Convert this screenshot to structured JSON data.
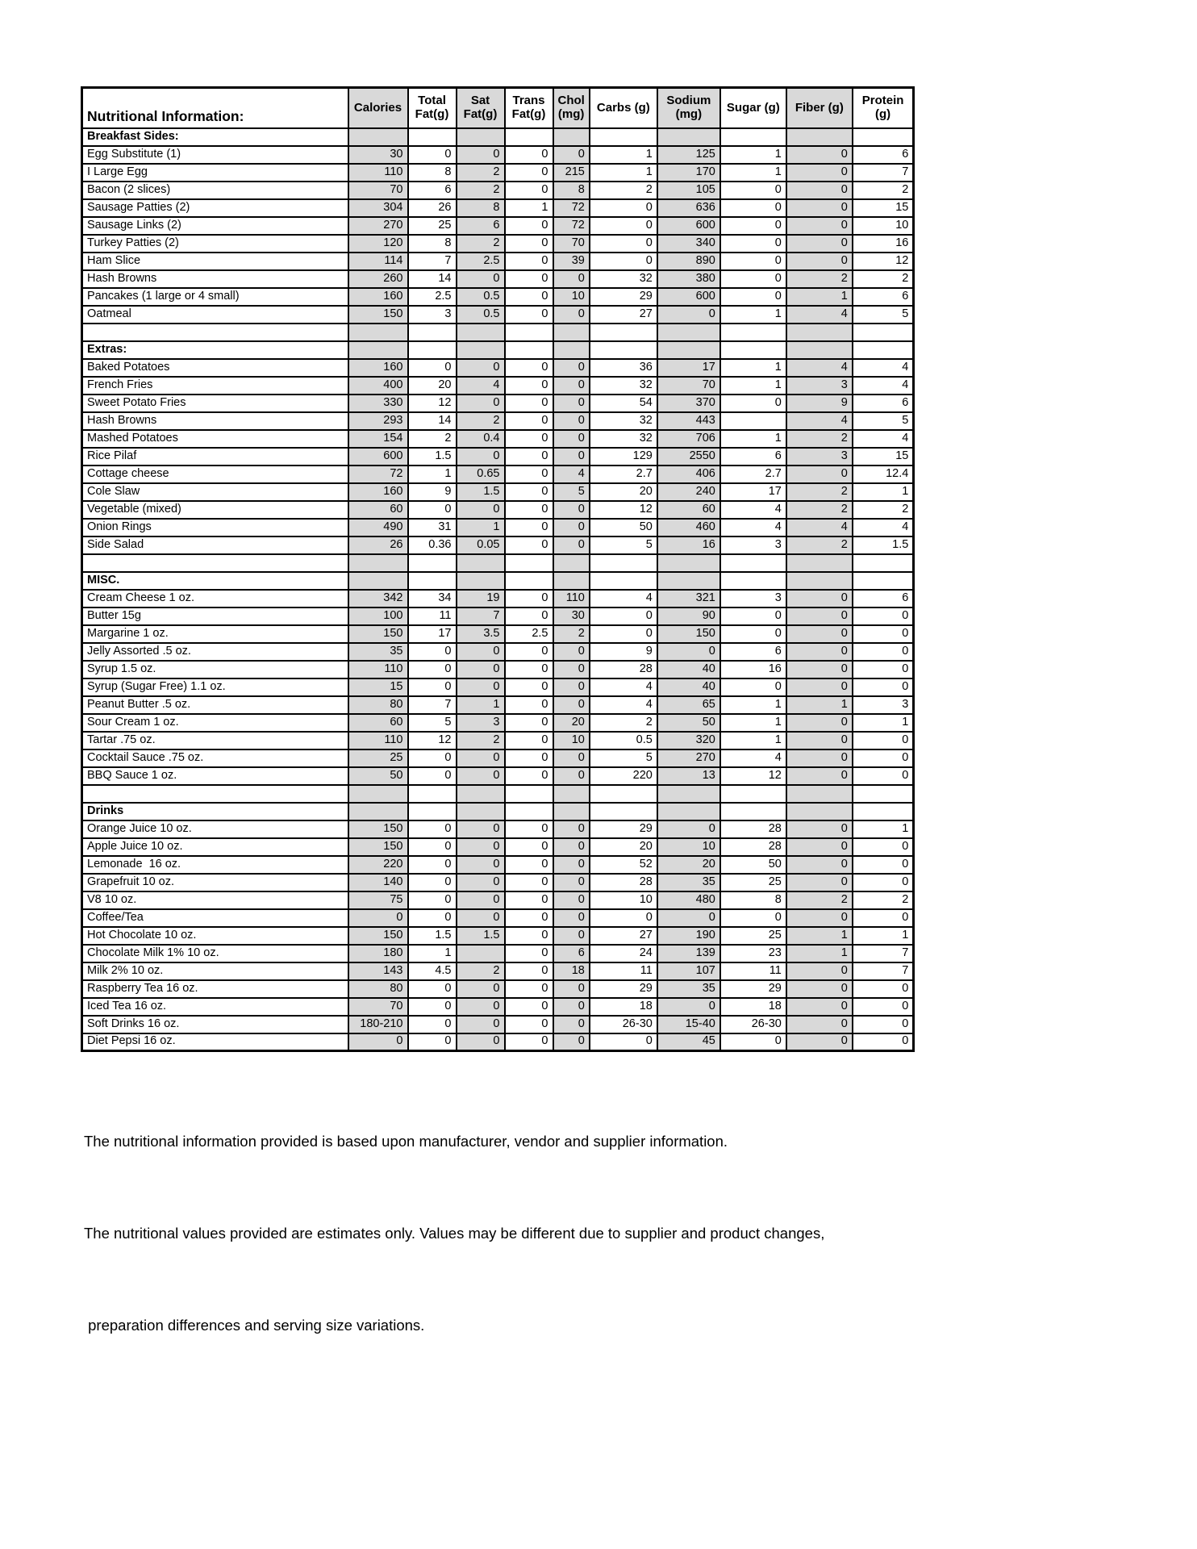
{
  "colors": {
    "cell_shade": "#d9d9d9",
    "border": "#000000",
    "text": "#000000",
    "background": "#ffffff"
  },
  "table": {
    "title": "Nutritional Information:",
    "columns": [
      {
        "key": "label",
        "label": "Nutritional Information:",
        "shaded": false
      },
      {
        "key": "calories",
        "label": "Calories",
        "shaded": true
      },
      {
        "key": "total-fat",
        "label": "Total\nFat(g)",
        "shaded": false
      },
      {
        "key": "sat-fat",
        "label": "Sat\nFat(g)",
        "shaded": true
      },
      {
        "key": "trans-fat",
        "label": "Trans\nFat(g)",
        "shaded": false
      },
      {
        "key": "chol",
        "label": "Chol\n(mg)",
        "shaded": true
      },
      {
        "key": "carbs",
        "label": "Carbs (g)",
        "shaded": false
      },
      {
        "key": "sodium",
        "label": "Sodium\n(mg)",
        "shaded": true
      },
      {
        "key": "sugar",
        "label": "Sugar (g)",
        "shaded": false
      },
      {
        "key": "fiber",
        "label": "Fiber (g)",
        "shaded": true
      },
      {
        "key": "protein",
        "label": "Protein\n(g)",
        "shaded": false
      }
    ],
    "rows": [
      {
        "t": "section",
        "label": "Breakfast Sides:"
      },
      {
        "t": "item",
        "label": "Egg Substitute (1)",
        "v": [
          "30",
          "0",
          "0",
          "0",
          "0",
          "1",
          "125",
          "1",
          "0",
          "6"
        ]
      },
      {
        "t": "item",
        "label": "I Large Egg",
        "v": [
          "110",
          "8",
          "2",
          "0",
          "215",
          "1",
          "170",
          "1",
          "0",
          "7"
        ]
      },
      {
        "t": "item",
        "label": "Bacon (2 slices)",
        "v": [
          "70",
          "6",
          "2",
          "0",
          "8",
          "2",
          "105",
          "0",
          "0",
          "2"
        ]
      },
      {
        "t": "item",
        "label": "Sausage Patties (2)",
        "v": [
          "304",
          "26",
          "8",
          "1",
          "72",
          "0",
          "636",
          "0",
          "0",
          "15"
        ]
      },
      {
        "t": "item",
        "label": "Sausage Links (2)",
        "v": [
          "270",
          "25",
          "6",
          "0",
          "72",
          "0",
          "600",
          "0",
          "0",
          "10"
        ]
      },
      {
        "t": "item",
        "label": "Turkey Patties (2)",
        "v": [
          "120",
          "8",
          "2",
          "0",
          "70",
          "0",
          "340",
          "0",
          "0",
          "16"
        ]
      },
      {
        "t": "item",
        "label": "Ham Slice",
        "v": [
          "114",
          "7",
          "2.5",
          "0",
          "39",
          "0",
          "890",
          "0",
          "0",
          "12"
        ]
      },
      {
        "t": "item",
        "label": "Hash Browns",
        "v": [
          "260",
          "14",
          "0",
          "0",
          "0",
          "32",
          "380",
          "0",
          "2",
          "2"
        ]
      },
      {
        "t": "item",
        "label": "Pancakes (1 large or 4 small)",
        "v": [
          "160",
          "2.5",
          "0.5",
          "0",
          "10",
          "29",
          "600",
          "0",
          "1",
          "6"
        ]
      },
      {
        "t": "item",
        "label": "Oatmeal",
        "v": [
          "150",
          "3",
          "0.5",
          "0",
          "0",
          "27",
          "0",
          "1",
          "4",
          "5"
        ]
      },
      {
        "t": "blank"
      },
      {
        "t": "section",
        "label": "Extras:"
      },
      {
        "t": "item",
        "label": "Baked Potatoes",
        "v": [
          "160",
          "0",
          "0",
          "0",
          "0",
          "36",
          "17",
          "1",
          "4",
          "4"
        ]
      },
      {
        "t": "item",
        "label": "French Fries",
        "v": [
          "400",
          "20",
          "4",
          "0",
          "0",
          "32",
          "70",
          "1",
          "3",
          "4"
        ]
      },
      {
        "t": "item",
        "label": "Sweet Potato Fries",
        "v": [
          "330",
          "12",
          "0",
          "0",
          "0",
          "54",
          "370",
          "0",
          "9",
          "6"
        ]
      },
      {
        "t": "item",
        "label": "Hash Browns",
        "v": [
          "293",
          "14",
          "2",
          "0",
          "0",
          "32",
          "443",
          "",
          "4",
          "5"
        ]
      },
      {
        "t": "item",
        "label": "Mashed Potatoes",
        "v": [
          "154",
          "2",
          "0.4",
          "0",
          "0",
          "32",
          "706",
          "1",
          "2",
          "4"
        ]
      },
      {
        "t": "item",
        "label": "Rice Pilaf",
        "v": [
          "600",
          "1.5",
          "0",
          "0",
          "0",
          "129",
          "2550",
          "6",
          "3",
          "15"
        ]
      },
      {
        "t": "item",
        "label": "Cottage cheese",
        "v": [
          "72",
          "1",
          "0.65",
          "0",
          "4",
          "2.7",
          "406",
          "2.7",
          "0",
          "12.4"
        ]
      },
      {
        "t": "item",
        "label": "Cole Slaw",
        "v": [
          "160",
          "9",
          "1.5",
          "0",
          "5",
          "20",
          "240",
          "17",
          "2",
          "1"
        ]
      },
      {
        "t": "item",
        "label": "Vegetable (mixed)",
        "v": [
          "60",
          "0",
          "0",
          "0",
          "0",
          "12",
          "60",
          "4",
          "2",
          "2"
        ]
      },
      {
        "t": "item",
        "label": "Onion Rings",
        "v": [
          "490",
          "31",
          "1",
          "0",
          "0",
          "50",
          "460",
          "4",
          "4",
          "4"
        ]
      },
      {
        "t": "item",
        "label": "Side Salad",
        "v": [
          "26",
          "0.36",
          "0.05",
          "0",
          "0",
          "5",
          "16",
          "3",
          "2",
          "1.5"
        ]
      },
      {
        "t": "blank"
      },
      {
        "t": "section",
        "label": "MISC."
      },
      {
        "t": "item",
        "label": "Cream Cheese 1 oz.",
        "v": [
          "342",
          "34",
          "19",
          "0",
          "110",
          "4",
          "321",
          "3",
          "0",
          "6"
        ]
      },
      {
        "t": "item",
        "label": "Butter 15g",
        "v": [
          "100",
          "11",
          "7",
          "0",
          "30",
          "0",
          "90",
          "0",
          "0",
          "0"
        ]
      },
      {
        "t": "item",
        "label": "Margarine 1 oz.",
        "v": [
          "150",
          "17",
          "3.5",
          "2.5",
          "2",
          "0",
          "150",
          "0",
          "0",
          "0"
        ]
      },
      {
        "t": "item",
        "label": "Jelly Assorted .5 oz.",
        "v": [
          "35",
          "0",
          "0",
          "0",
          "0",
          "9",
          "0",
          "6",
          "0",
          "0"
        ]
      },
      {
        "t": "item",
        "label": "Syrup 1.5 oz.",
        "v": [
          "110",
          "0",
          "0",
          "0",
          "0",
          "28",
          "40",
          "16",
          "0",
          "0"
        ]
      },
      {
        "t": "item",
        "label": "Syrup (Sugar Free) 1.1 oz.",
        "v": [
          "15",
          "0",
          "0",
          "0",
          "0",
          "4",
          "40",
          "0",
          "0",
          "0"
        ]
      },
      {
        "t": "item",
        "label": "Peanut Butter .5 oz.",
        "v": [
          "80",
          "7",
          "1",
          "0",
          "0",
          "4",
          "65",
          "1",
          "1",
          "3"
        ]
      },
      {
        "t": "item",
        "label": "Sour Cream 1 oz.",
        "v": [
          "60",
          "5",
          "3",
          "0",
          "20",
          "2",
          "50",
          "1",
          "0",
          "1"
        ]
      },
      {
        "t": "item",
        "label": "Tartar .75 oz.",
        "v": [
          "110",
          "12",
          "2",
          "0",
          "10",
          "0.5",
          "320",
          "1",
          "0",
          "0"
        ]
      },
      {
        "t": "item",
        "label": "Cocktail Sauce .75 oz.",
        "v": [
          "25",
          "0",
          "0",
          "0",
          "0",
          "5",
          "270",
          "4",
          "0",
          "0"
        ]
      },
      {
        "t": "item",
        "label": "BBQ Sauce 1 oz.",
        "v": [
          "50",
          "0",
          "0",
          "0",
          "0",
          "220",
          "13",
          "12",
          "0",
          "0"
        ]
      },
      {
        "t": "blank"
      },
      {
        "t": "section",
        "label": "Drinks"
      },
      {
        "t": "item",
        "label": "Orange Juice 10 oz.",
        "v": [
          "150",
          "0",
          "0",
          "0",
          "0",
          "29",
          "0",
          "28",
          "0",
          "1"
        ]
      },
      {
        "t": "item",
        "label": "Apple Juice 10 oz.",
        "v": [
          "150",
          "0",
          "0",
          "0",
          "0",
          "20",
          "10",
          "28",
          "0",
          "0"
        ]
      },
      {
        "t": "item",
        "label": "Lemonade  16 oz.",
        "v": [
          "220",
          "0",
          "0",
          "0",
          "0",
          "52",
          "20",
          "50",
          "0",
          "0"
        ]
      },
      {
        "t": "item",
        "label": "Grapefruit 10 oz.",
        "v": [
          "140",
          "0",
          "0",
          "0",
          "0",
          "28",
          "35",
          "25",
          "0",
          "0"
        ]
      },
      {
        "t": "item",
        "label": "V8 10 oz.",
        "v": [
          "75",
          "0",
          "0",
          "0",
          "0",
          "10",
          "480",
          "8",
          "2",
          "2"
        ]
      },
      {
        "t": "item",
        "label": "Coffee/Tea",
        "v": [
          "0",
          "0",
          "0",
          "0",
          "0",
          "0",
          "0",
          "0",
          "0",
          "0"
        ]
      },
      {
        "t": "item",
        "label": "Hot Chocolate 10 oz.",
        "v": [
          "150",
          "1.5",
          "1.5",
          "0",
          "0",
          "27",
          "190",
          "25",
          "1",
          "1"
        ]
      },
      {
        "t": "item",
        "label": "Chocolate Milk 1% 10 oz.",
        "v": [
          "180",
          "1",
          "",
          "0",
          "6",
          "24",
          "139",
          "23",
          "1",
          "7"
        ]
      },
      {
        "t": "item",
        "label": "Milk 2% 10 oz.",
        "v": [
          "143",
          "4.5",
          "2",
          "0",
          "18",
          "11",
          "107",
          "11",
          "0",
          "7"
        ]
      },
      {
        "t": "item",
        "label": "Raspberry Tea 16 oz.",
        "v": [
          "80",
          "0",
          "0",
          "0",
          "0",
          "29",
          "35",
          "29",
          "0",
          "0"
        ]
      },
      {
        "t": "item",
        "label": "Iced Tea 16 oz.",
        "v": [
          "70",
          "0",
          "0",
          "0",
          "0",
          "18",
          "0",
          "18",
          "0",
          "0"
        ]
      },
      {
        "t": "item",
        "label": "Soft Drinks 16 oz.",
        "v": [
          "180-210",
          "0",
          "0",
          "0",
          "0",
          "26-30",
          "15-40",
          "26-30",
          "0",
          "0"
        ]
      },
      {
        "t": "item",
        "label": "Diet Pepsi 16 oz.",
        "v": [
          "0",
          "0",
          "0",
          "0",
          "0",
          "0",
          "45",
          "0",
          "0",
          "0"
        ]
      }
    ]
  },
  "footnote": {
    "line1": "The nutritional information provided is based upon manufacturer, vendor and supplier information.",
    "line2": "The nutritional values provided are estimates only. Values may be different due to supplier and product changes,",
    "line3": " preparation differences and serving size variations."
  }
}
